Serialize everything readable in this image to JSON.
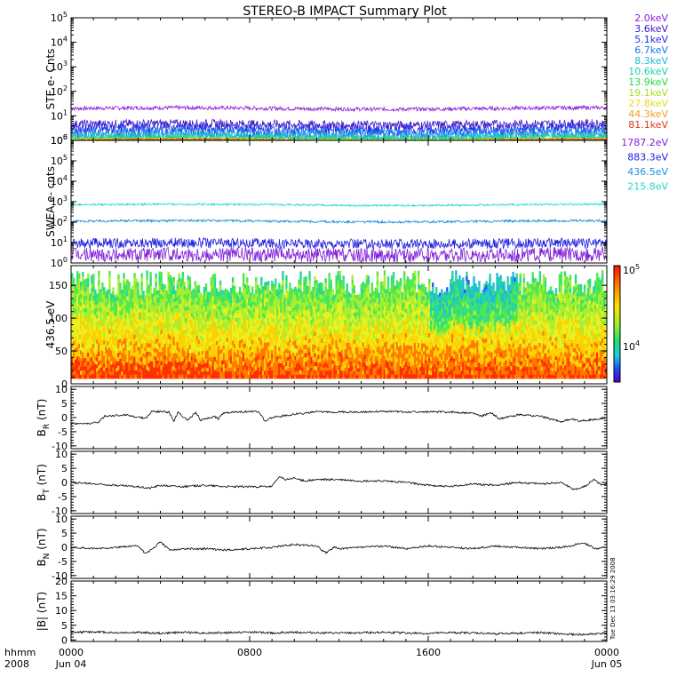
{
  "title": "STEREO-B IMPACT Summary Plot",
  "stamp": "Tue Dec 13 03:16:29 2008",
  "time_axis": {
    "corner_top": "hhmm",
    "corner_bottom": "2008",
    "ticks": [
      {
        "label": "0000",
        "sub": "Jun 04",
        "hour": 0
      },
      {
        "label": "0800",
        "sub": "",
        "hour": 8
      },
      {
        "label": "1600",
        "sub": "",
        "hour": 16
      },
      {
        "label": "0000",
        "sub": "Jun 05",
        "hour": 24
      }
    ]
  },
  "chart_data": [
    {
      "type": "line",
      "ylabel": "STE e- Cnts",
      "yscale": "log",
      "ylim": [
        1,
        100000
      ],
      "yticks": [
        {
          "b": "10",
          "e": "0"
        },
        {
          "b": "10",
          "e": "1"
        },
        {
          "b": "10",
          "e": "2"
        },
        {
          "b": "10",
          "e": "3"
        },
        {
          "b": "10",
          "e": "4"
        },
        {
          "b": "10",
          "e": "5"
        }
      ],
      "series": [
        {
          "name": "2.0keV",
          "color": "#8c1fd6",
          "level": 20,
          "noise": 0.08
        },
        {
          "name": "3.6keV",
          "color": "#4018c8",
          "level": 4.5,
          "noise": 0.18
        },
        {
          "name": "5.1keV",
          "color": "#2030e8",
          "level": 2.8,
          "noise": 0.22
        },
        {
          "name": "6.7keV",
          "color": "#1a78e8",
          "level": 1.9,
          "noise": 0.25
        },
        {
          "name": "8.3keV",
          "color": "#20b8d8",
          "level": 1.5,
          "noise": 0.2
        },
        {
          "name": "10.6keV",
          "color": "#20d0a8",
          "level": 1.25,
          "noise": 0.15
        },
        {
          "name": "13.9keV",
          "color": "#28d848",
          "level": 1.1,
          "noise": 0.1
        },
        {
          "name": "19.1keV",
          "color": "#a8e020",
          "level": 1.05,
          "noise": 0.08
        },
        {
          "name": "27.8keV",
          "color": "#e8d820",
          "level": 1.02,
          "noise": 0.06
        },
        {
          "name": "44.3keV",
          "color": "#f0a020",
          "level": 1.01,
          "noise": 0.05
        },
        {
          "name": "81.1keV",
          "color": "#e03818",
          "level": 1.0,
          "noise": 0.04
        }
      ]
    },
    {
      "type": "line",
      "ylabel": "SWEA e- cnts",
      "yscale": "log",
      "ylim": [
        1,
        1000000
      ],
      "yticks": [
        {
          "b": "10",
          "e": "0"
        },
        {
          "b": "10",
          "e": "1"
        },
        {
          "b": "10",
          "e": "2"
        },
        {
          "b": "10",
          "e": "3"
        },
        {
          "b": "10",
          "e": "4"
        },
        {
          "b": "10",
          "e": "5"
        },
        {
          "b": "10",
          "e": "6"
        }
      ],
      "series": [
        {
          "name": "1787.2eV",
          "color": "#8020d8",
          "level": 2.5,
          "noise": 0.35
        },
        {
          "name": "883.3eV",
          "color": "#2020e0",
          "level": 9,
          "noise": 0.25
        },
        {
          "name": "436.5eV",
          "color": "#1a90e0",
          "level": 110,
          "noise": 0.06
        },
        {
          "name": "215.8eV",
          "color": "#20d8c8",
          "level": 700,
          "noise": 0.05
        }
      ]
    },
    {
      "type": "heatmap",
      "ylabel": "436.5 eV",
      "ylim": [
        0,
        180
      ],
      "yticks": [
        0,
        50,
        100,
        150
      ],
      "colorbar": {
        "scale": "log",
        "labels": [
          {
            "b": "10",
            "e": "5"
          },
          {
            "b": "10",
            "e": "4"
          }
        ]
      }
    },
    {
      "type": "line",
      "ylabel": "B",
      "ysub": "R",
      "yunit": "(nT)",
      "ylim": [
        -11,
        11
      ],
      "yticks": [
        -10,
        -5,
        0,
        5,
        10
      ],
      "series": [
        {
          "name": "",
          "color": "#000000",
          "x": [
            0,
            0.5,
            1.2,
            1.5,
            2.5,
            3.0,
            3.4,
            3.6,
            4.4,
            4.6,
            4.8,
            5.2,
            5.6,
            5.8,
            6.4,
            6.6,
            6.8,
            7.2,
            8.4,
            8.7,
            9.0,
            10,
            11,
            12,
            13,
            14,
            15,
            16,
            17,
            18,
            18.4,
            18.8,
            19.2,
            20,
            21,
            21.5,
            22,
            22.4,
            22.8,
            23.3,
            24
          ],
          "y": [
            -2,
            -2.2,
            -1.8,
            0.5,
            1,
            0,
            0,
            2.2,
            2,
            -1.5,
            2,
            -1,
            1.8,
            -1,
            0.5,
            -0.5,
            1.5,
            2,
            2.2,
            -1.5,
            0,
            1.2,
            2,
            2,
            2,
            2.2,
            2,
            2,
            2,
            1.5,
            0.5,
            1.8,
            -0.5,
            1,
            0.5,
            -0.5,
            -1.5,
            -0.5,
            -1.2,
            -0.8,
            0
          ]
        }
      ]
    },
    {
      "type": "line",
      "ylabel": "B",
      "ysub": "T",
      "yunit": "(nT)",
      "ylim": [
        -11,
        11
      ],
      "yticks": [
        -10,
        -5,
        0,
        5,
        10
      ],
      "series": [
        {
          "name": "",
          "color": "#000000",
          "x": [
            0,
            1,
            2,
            3,
            3.5,
            4,
            5,
            6,
            7,
            8,
            9,
            9.3,
            9.6,
            10,
            10.5,
            11,
            12,
            13,
            14,
            15,
            16,
            17,
            18,
            19,
            20,
            21,
            22,
            22.5,
            23,
            23.4,
            23.8,
            24
          ],
          "y": [
            0,
            -0.5,
            -1,
            -1.5,
            -2,
            -1,
            -1.5,
            -1,
            -1.5,
            -1.5,
            -1.5,
            2,
            1,
            1.5,
            0.5,
            1,
            1,
            0.5,
            0.5,
            0,
            -1,
            -1.5,
            -0.5,
            -1,
            0,
            -0.5,
            0,
            -2.5,
            -1.5,
            1,
            -1,
            -0.5
          ]
        }
      ]
    },
    {
      "type": "line",
      "ylabel": "B",
      "ysub": "N",
      "yunit": "(nT)",
      "ylim": [
        -11,
        11
      ],
      "yticks": [
        -10,
        -5,
        0,
        5,
        10
      ],
      "series": [
        {
          "name": "",
          "color": "#000000",
          "x": [
            0,
            1,
            2,
            3,
            3.3,
            3.6,
            4,
            4.4,
            5,
            6,
            7,
            8,
            9,
            10,
            11,
            11.4,
            11.8,
            12,
            13,
            14,
            15,
            16,
            17,
            18,
            19,
            20,
            21,
            22,
            23,
            23.5,
            24
          ],
          "y": [
            0,
            -0.5,
            0,
            0.5,
            -2,
            -1,
            2,
            -1,
            -0.5,
            -0.5,
            -1,
            -0.5,
            0,
            1,
            0.5,
            -2,
            0,
            -0.5,
            0,
            0.5,
            -0.5,
            0.5,
            0,
            -0.5,
            0.5,
            0,
            -0.5,
            0,
            1.5,
            -0.5,
            0
          ]
        }
      ]
    },
    {
      "type": "line",
      "ylabel": "|B|",
      "ysub": "",
      "yunit": "(nT)",
      "ylim": [
        -0.5,
        20
      ],
      "yticks": [
        0,
        5,
        10,
        15,
        20
      ],
      "series": [
        {
          "name": "",
          "color": "#000000",
          "x": [
            0,
            1,
            2,
            3,
            4,
            5,
            6,
            7,
            8,
            9,
            10,
            11,
            12,
            13,
            14,
            15,
            16,
            17,
            18,
            19,
            20,
            21,
            22,
            23,
            24
          ],
          "y": [
            2.5,
            2.8,
            2.5,
            2.6,
            2.3,
            2.6,
            2.4,
            2.5,
            2.7,
            2.4,
            2.6,
            2.5,
            2.3,
            2.5,
            2.6,
            2.4,
            2.2,
            2.5,
            2.4,
            2.1,
            2.3,
            2.5,
            2.0,
            1.8,
            2.4
          ]
        }
      ]
    }
  ]
}
